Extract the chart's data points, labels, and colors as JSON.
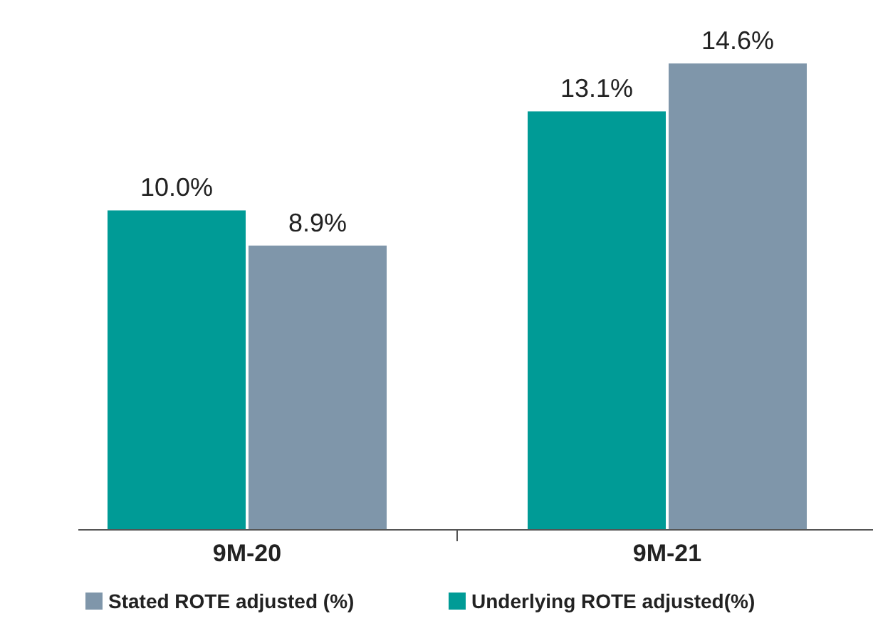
{
  "chart_data": {
    "type": "bar",
    "categories": [
      "9M-20",
      "9M-21"
    ],
    "series": [
      {
        "name": "Underlying ROTE adjusted(%)",
        "color": "#009b96",
        "values": [
          10.0,
          13.1
        ],
        "value_labels": [
          "10.0%",
          "13.1%"
        ]
      },
      {
        "name": "Stated ROTE adjusted (%)",
        "color": "#7f96aa",
        "values": [
          8.9,
          14.6
        ],
        "value_labels": [
          "8.9%",
          "14.6%"
        ]
      }
    ],
    "legend": "bottom"
  }
}
